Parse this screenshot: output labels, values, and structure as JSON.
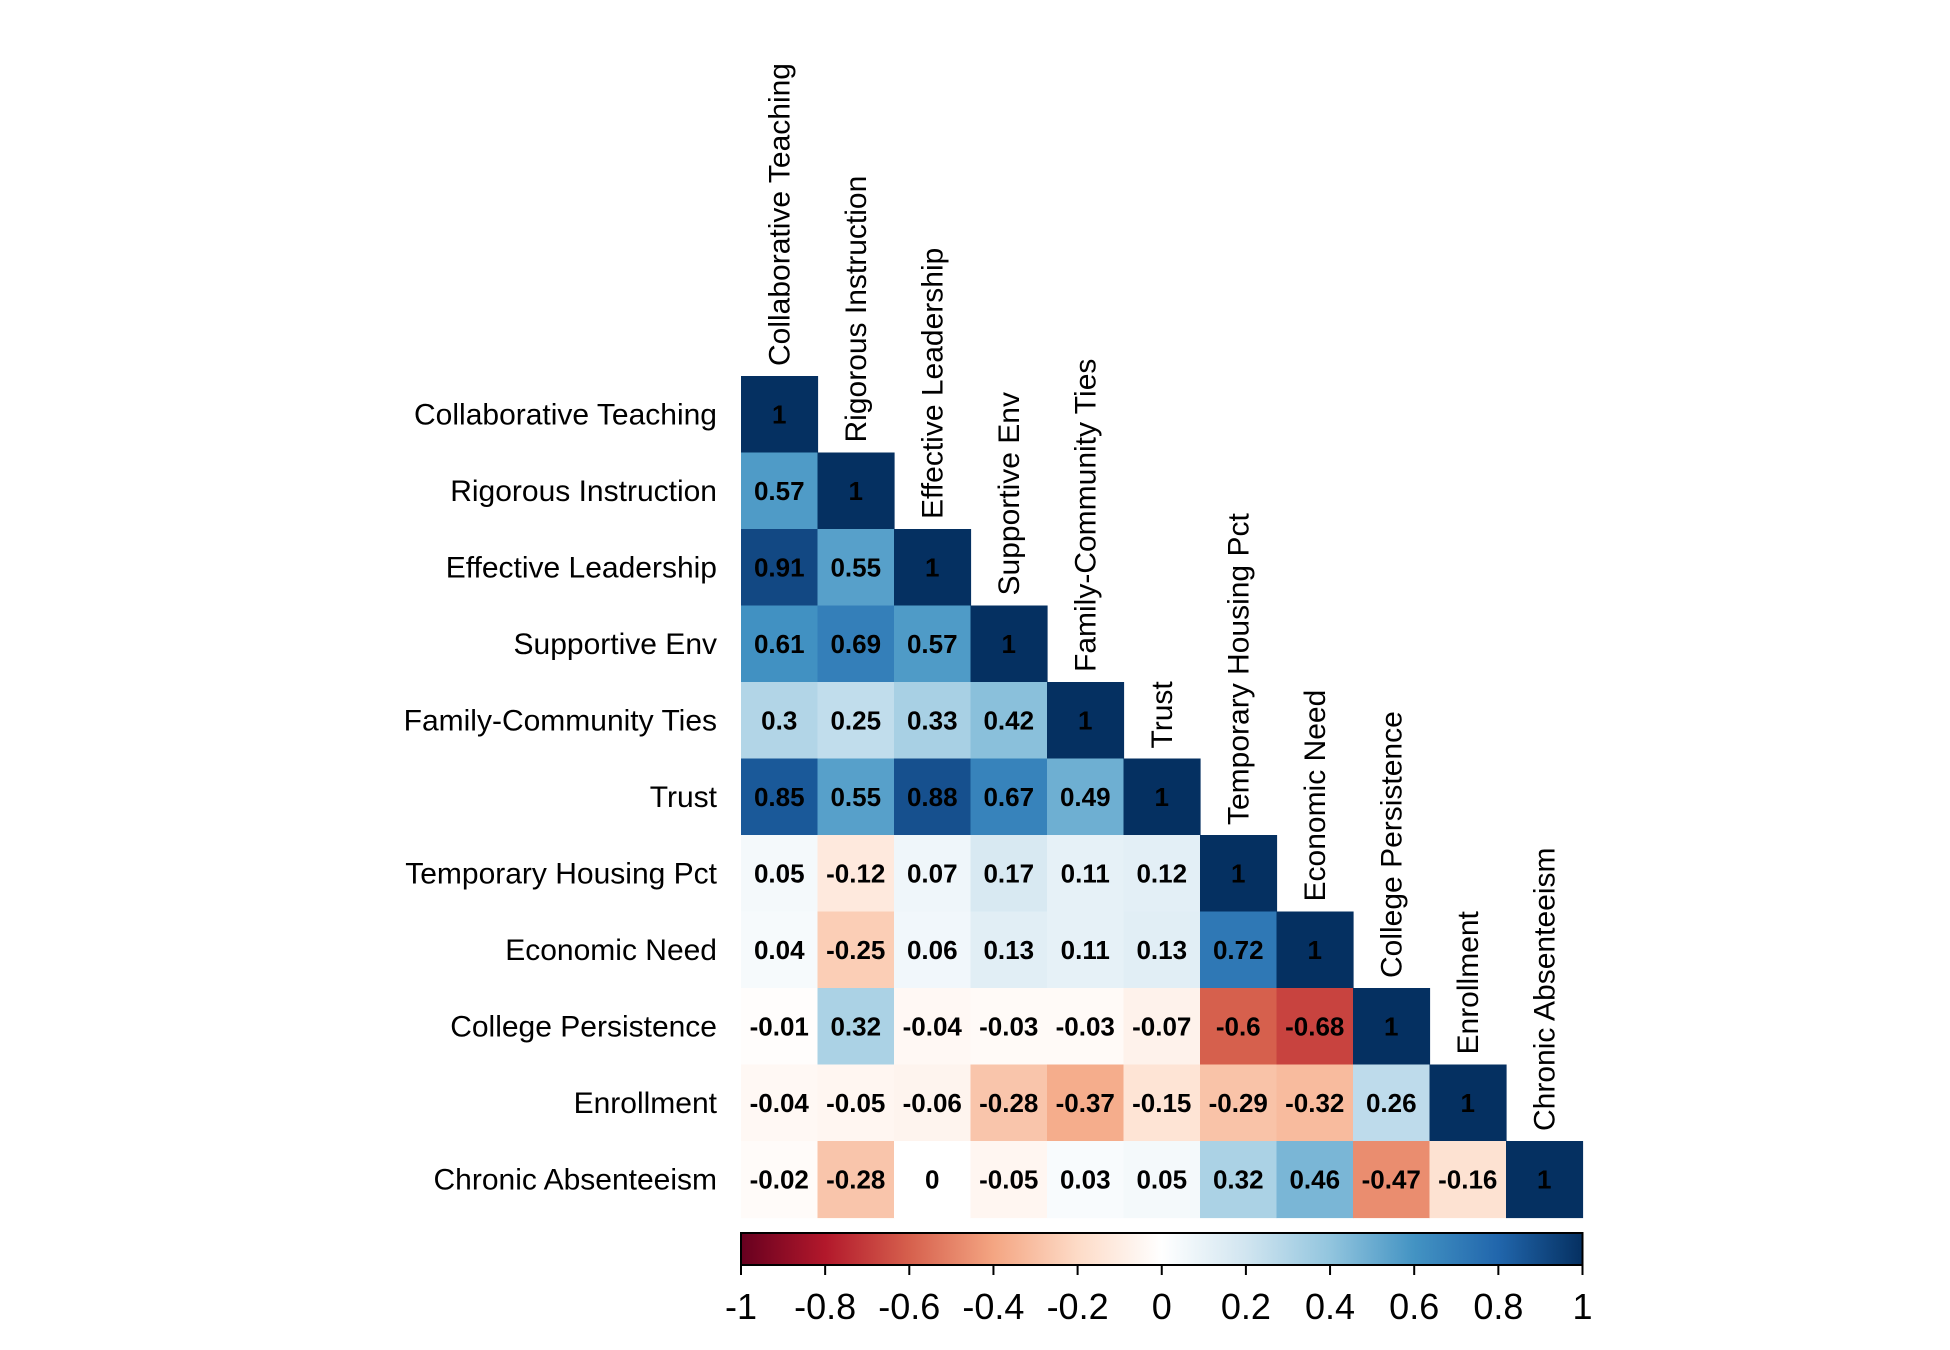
{
  "chart_data": {
    "type": "heatmap",
    "variables": [
      "Collaborative Teaching",
      "Rigorous Instruction",
      "Effective Leadership",
      "Supportive Env",
      "Family-Community Ties",
      "Trust",
      "Temporary Housing Pct",
      "Economic Need",
      "College Persistence",
      "Enrollment",
      "Chronic Absenteeism"
    ],
    "lower_triangle": [
      [
        "1"
      ],
      [
        "0.57",
        "1"
      ],
      [
        "0.91",
        "0.55",
        "1"
      ],
      [
        "0.61",
        "0.69",
        "0.57",
        "1"
      ],
      [
        "0.3",
        "0.25",
        "0.33",
        "0.42",
        "1"
      ],
      [
        "0.85",
        "0.55",
        "0.88",
        "0.67",
        "0.49",
        "1"
      ],
      [
        "0.05",
        "-0.12",
        "0.07",
        "0.17",
        "0.11",
        "0.12",
        "1"
      ],
      [
        "0.04",
        "-0.25",
        "0.06",
        "0.13",
        "0.11",
        "0.13",
        "0.72",
        "1"
      ],
      [
        "-0.01",
        "0.32",
        "-0.04",
        "-0.03",
        "-0.03",
        "-0.07",
        "-0.6",
        "-0.68",
        "1"
      ],
      [
        "-0.04",
        "-0.05",
        "-0.06",
        "-0.28",
        "-0.37",
        "-0.15",
        "-0.29",
        "-0.32",
        "0.26",
        "1"
      ],
      [
        "-0.02",
        "-0.28",
        "0",
        "-0.05",
        "0.03",
        "0.05",
        "0.32",
        "0.46",
        "-0.47",
        "-0.16",
        "1"
      ]
    ],
    "colorbar": {
      "range": [
        -1,
        1
      ],
      "ticks": [
        "-1",
        "-0.8",
        "-0.6",
        "-0.4",
        "-0.2",
        "0",
        "0.2",
        "0.4",
        "0.6",
        "0.8",
        "1"
      ]
    },
    "palette": [
      "#67001F",
      "#B2182B",
      "#D6604D",
      "#F4A582",
      "#FDDBC7",
      "#FFFFFF",
      "#D1E5F0",
      "#92C5DE",
      "#4393C3",
      "#2166AC",
      "#053061"
    ]
  }
}
